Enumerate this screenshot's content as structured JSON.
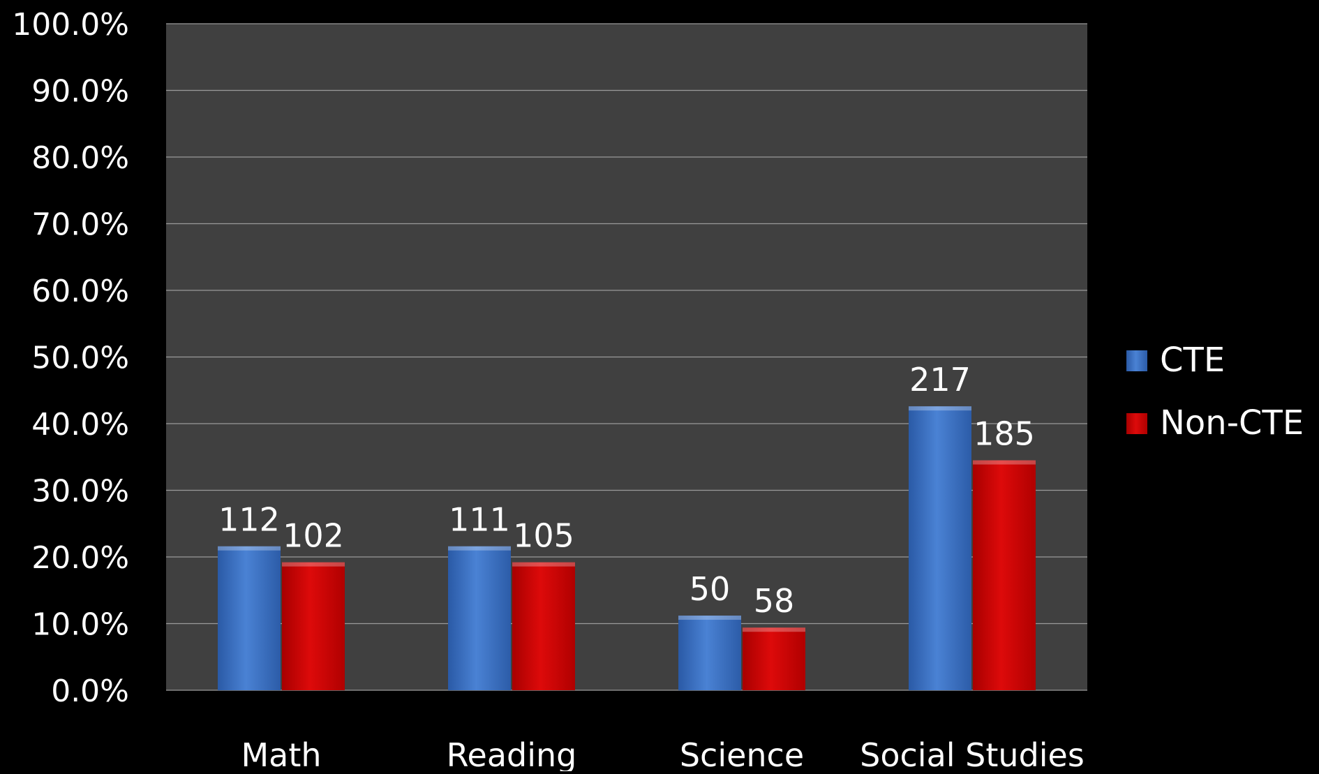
{
  "chart_data": {
    "type": "bar",
    "categories": [
      "Math",
      "Reading",
      "Science",
      "Social Studies"
    ],
    "series": [
      {
        "name": "CTE",
        "values": [
          21.6,
          21.6,
          11.2,
          42.6
        ],
        "data_labels": [
          "112",
          "111",
          "50",
          "217"
        ],
        "color": "#3f73c4"
      },
      {
        "name": "Non-CTE",
        "values": [
          19.2,
          19.2,
          9.4,
          34.5
        ],
        "data_labels": [
          "102",
          "105",
          "58",
          "185"
        ],
        "color": "#cc0000"
      }
    ],
    "y_ticks": [
      "0.0%",
      "10.0%",
      "20.0%",
      "30.0%",
      "40.0%",
      "50.0%",
      "60.0%",
      "70.0%",
      "80.0%",
      "90.0%",
      "100.0%"
    ],
    "ylim": [
      0,
      100
    ],
    "y_format": "percent",
    "grid": true,
    "legend_position": "right",
    "title": "",
    "xlabel": "",
    "ylabel": "",
    "colors": {
      "background": "#000000",
      "plot_area": "#404040",
      "gridline": "#9a9a9a",
      "text": "#ffffff"
    }
  }
}
